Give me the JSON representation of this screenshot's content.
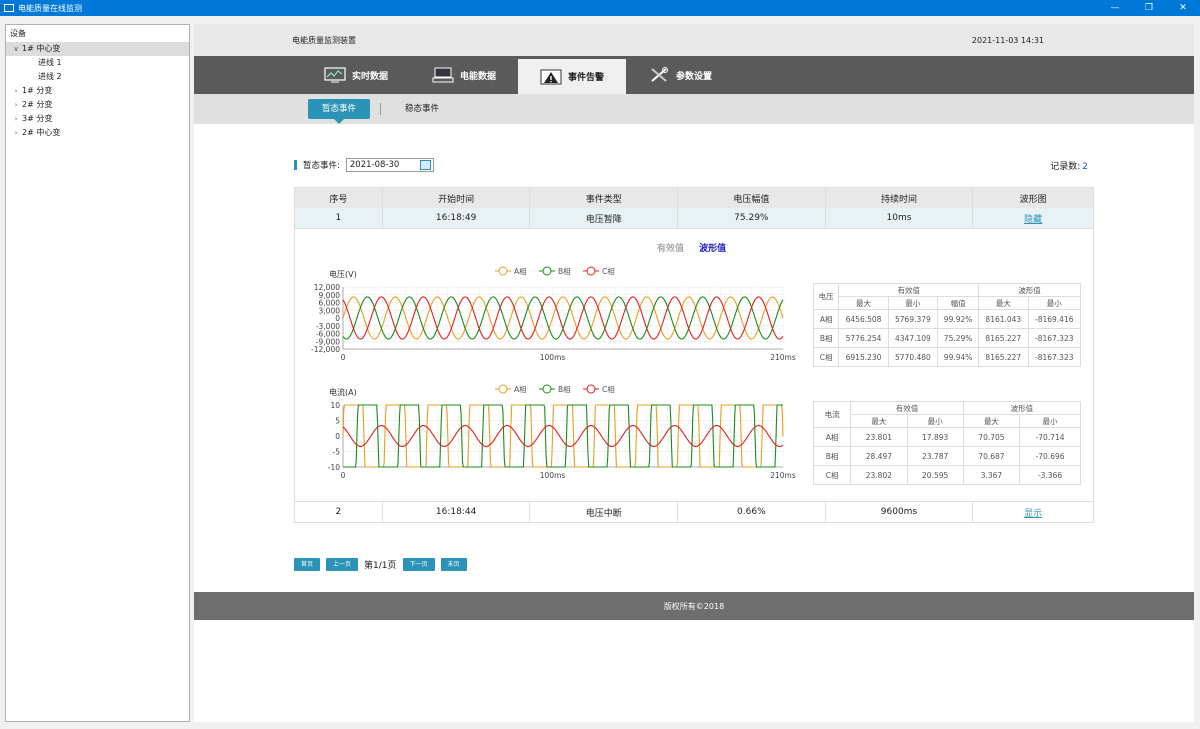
{
  "window": {
    "title": "电能质量在线监测",
    "controls": [
      "—",
      "❐",
      "✕"
    ]
  },
  "tree": {
    "header": "设备",
    "nodes": [
      {
        "label": "1#  中心变",
        "expanded": true,
        "level": 0,
        "selected": true
      },
      {
        "label": "进线  1",
        "level": 1
      },
      {
        "label": "进线  2",
        "level": 1
      },
      {
        "label": "1# 分变",
        "level": 0
      },
      {
        "label": "2# 分变",
        "level": 0
      },
      {
        "label": "3# 分变",
        "level": 0
      },
      {
        "label": "2#  中心变",
        "level": 0
      }
    ]
  },
  "header": {
    "title": "电能质量监测装置",
    "datetime": "2021-11-03 14:31"
  },
  "nav": {
    "tabs": [
      {
        "label": "实时数据",
        "icon": "monitor-chart-icon"
      },
      {
        "label": "电能数据",
        "icon": "keyboard-screen-icon"
      },
      {
        "label": "事件告警",
        "icon": "warning-triangle-icon",
        "active": true
      },
      {
        "label": "参数设置",
        "icon": "tools-icon"
      }
    ]
  },
  "subnav": {
    "tabs": [
      {
        "label": "暂态事件",
        "active": true
      },
      {
        "label": "稳态事件"
      }
    ]
  },
  "filter": {
    "label": "暂态事件:",
    "date": "2021-08-30"
  },
  "records": {
    "label": "记录数:",
    "count": "2"
  },
  "table": {
    "headers": [
      "序号",
      "开始时间",
      "事件类型",
      "电压幅值",
      "持续时间",
      "波形图"
    ],
    "rows": [
      {
        "no": "1",
        "start": "16:18:49",
        "type": "电压暂降",
        "amplitude": "75.29%",
        "duration": "10ms",
        "action": "隐藏"
      },
      {
        "no": "2",
        "start": "16:18:44",
        "type": "电压中断",
        "amplitude": "0.66%",
        "duration": "9600ms",
        "action": "显示"
      }
    ]
  },
  "detail": {
    "toggle_rms": "有效值",
    "toggle_wave": "波形值",
    "voltage_table": {
      "corner": "电压",
      "group_rms": "有效值",
      "group_wave": "波形值",
      "sub": [
        "最大",
        "最小",
        "幅值",
        "最大",
        "最小"
      ],
      "rows": [
        {
          "phase": "A相",
          "v": [
            "6456.508",
            "5769.379",
            "99.92%",
            "8161.043",
            "-8169.416"
          ]
        },
        {
          "phase": "B相",
          "v": [
            "5776.254",
            "4347.109",
            "75.29%",
            "8165.227",
            "-8167.323"
          ]
        },
        {
          "phase": "C相",
          "v": [
            "6915.230",
            "5770.480",
            "99.94%",
            "8165.227",
            "-8167.323"
          ]
        }
      ]
    },
    "current_table": {
      "corner": "电流",
      "group_rms": "有效值",
      "group_wave": "波形值",
      "sub": [
        "最大",
        "最小",
        "最大",
        "最小"
      ],
      "rows": [
        {
          "phase": "A相",
          "v": [
            "23.801",
            "17.893",
            "70.705",
            "-70.714"
          ]
        },
        {
          "phase": "B相",
          "v": [
            "28.497",
            "23.787",
            "70.687",
            "-70.696"
          ]
        },
        {
          "phase": "C相",
          "v": [
            "23.802",
            "20.595",
            "3.367",
            "-3.366"
          ]
        }
      ]
    }
  },
  "chart_data": [
    {
      "type": "line",
      "ylabel": "电压(V)",
      "legend": [
        "A相",
        "B相",
        "C相"
      ],
      "colors": [
        "#e8a020",
        "#1a8a1a",
        "#e02020"
      ],
      "yticks": [
        "12,000",
        "9,000",
        "6,000",
        "3,000",
        "0",
        "-3,000",
        "-6,000",
        "-9,000",
        "-12,000"
      ],
      "xticks": [
        "0",
        "100ms",
        "210ms"
      ],
      "xlim": [
        0,
        210
      ],
      "ylim": [
        -12000,
        12000
      ],
      "amplitudes": [
        8165,
        8165,
        8165
      ],
      "cycles": 10.5,
      "sag_marker_ms": 100
    },
    {
      "type": "line",
      "ylabel": "电流(A)",
      "legend": [
        "A相",
        "B相",
        "C相"
      ],
      "colors": [
        "#e8a020",
        "#1a8a1a",
        "#e02020"
      ],
      "yticks": [
        "10",
        "5",
        "0",
        "-5",
        "-10"
      ],
      "xticks": [
        "0",
        "100ms",
        "210ms"
      ],
      "xlim": [
        0,
        210
      ],
      "ylim": [
        -10,
        10
      ],
      "amplitudes": [
        70.7,
        70.7,
        3.37
      ],
      "cycles": 10.5,
      "sag_marker_ms": 100
    }
  ],
  "pager": {
    "first": "首页",
    "prev": "上一页",
    "info": "第1/1页",
    "next": "下一页",
    "last": "末页"
  },
  "footer": {
    "copyright": "版权所有©2018"
  }
}
